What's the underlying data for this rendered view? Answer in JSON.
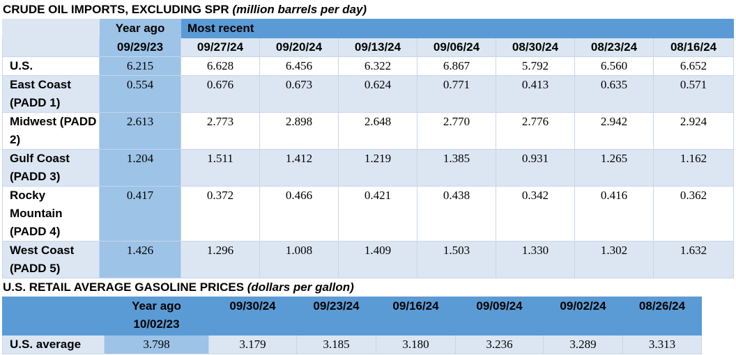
{
  "crude": {
    "title": "CRUDE OIL IMPORTS, EXCLUDING SPR",
    "unit": "(million barrels per day)",
    "year_ago_label": "Year ago",
    "most_recent_label": "Most recent",
    "columns": [
      "09/29/23",
      "09/27/24",
      "09/20/24",
      "09/13/24",
      "09/06/24",
      "08/30/24",
      "08/23/24",
      "08/16/24"
    ],
    "rows": [
      {
        "label": "U.S.",
        "values": [
          "6.215",
          "6.628",
          "6.456",
          "6.322",
          "6.867",
          "5.792",
          "6.560",
          "6.652"
        ]
      },
      {
        "label": "East Coast (PADD 1)",
        "values": [
          "0.554",
          "0.676",
          "0.673",
          "0.624",
          "0.771",
          "0.413",
          "0.635",
          "0.571"
        ]
      },
      {
        "label": "Midwest (PADD 2)",
        "values": [
          "2.613",
          "2.773",
          "2.898",
          "2.648",
          "2.770",
          "2.776",
          "2.942",
          "2.924"
        ]
      },
      {
        "label": "Gulf Coast (PADD 3)",
        "values": [
          "1.204",
          "1.511",
          "1.412",
          "1.219",
          "1.385",
          "0.931",
          "1.265",
          "1.162"
        ]
      },
      {
        "label": "Rocky Mountain (PADD 4)",
        "values": [
          "0.417",
          "0.372",
          "0.466",
          "0.421",
          "0.438",
          "0.342",
          "0.416",
          "0.362"
        ]
      },
      {
        "label": "West Coast (PADD 5)",
        "values": [
          "1.426",
          "1.296",
          "1.008",
          "1.409",
          "1.503",
          "1.330",
          "1.302",
          "1.632"
        ]
      }
    ]
  },
  "gasoline": {
    "title": "U.S. RETAIL AVERAGE GASOLINE PRICES",
    "unit": "(dollars per gallon)",
    "year_ago_label": "Year ago",
    "year_ago_date": "10/02/23",
    "columns": [
      "09/30/24",
      "09/23/24",
      "09/16/24",
      "09/09/24",
      "09/02/24",
      "08/26/24"
    ],
    "row": {
      "label": "U.S. average",
      "year_ago_value": "3.798",
      "values": [
        "3.179",
        "3.185",
        "3.180",
        "3.236",
        "3.289",
        "3.313"
      ]
    }
  }
}
